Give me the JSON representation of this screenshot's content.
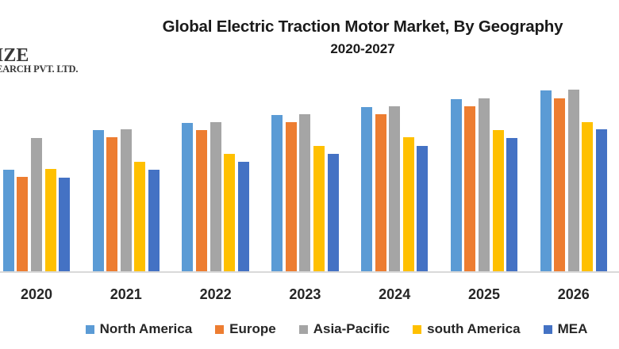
{
  "logo": {
    "line1": "IZE",
    "line2": "EARCH PVT. LTD."
  },
  "chart_data": {
    "type": "bar",
    "title": "Global Electric Traction Motor Market, By Geography",
    "subtitle": "2020-2027",
    "categories": [
      "2020",
      "2021",
      "2022",
      "2023",
      "2024",
      "2025",
      "2026"
    ],
    "series": [
      {
        "name": "North America",
        "color": "#5B9BD5",
        "values": [
          128,
          178,
          187,
          197,
          207,
          217,
          228
        ]
      },
      {
        "name": "Europe",
        "color": "#ED7D31",
        "values": [
          119,
          169,
          178,
          188,
          198,
          208,
          218
        ]
      },
      {
        "name": "Asia-Pacific",
        "color": "#A5A5A5",
        "values": [
          168,
          179,
          188,
          198,
          208,
          218,
          229
        ]
      },
      {
        "name": "south America",
        "color": "#FFC000",
        "values": [
          129,
          138,
          148,
          158,
          169,
          178,
          188
        ]
      },
      {
        "name": "MEA",
        "color": "#4472C4",
        "values": [
          118,
          128,
          138,
          148,
          158,
          168,
          179
        ]
      }
    ],
    "ylim": [
      0,
      250
    ],
    "value_axis_labels_visible": false,
    "gridlines": false,
    "legend_position": "bottom",
    "axis_line_color": "#D9D9D9",
    "category_label_color": "#262626",
    "title_color": "#1A1A1A"
  }
}
